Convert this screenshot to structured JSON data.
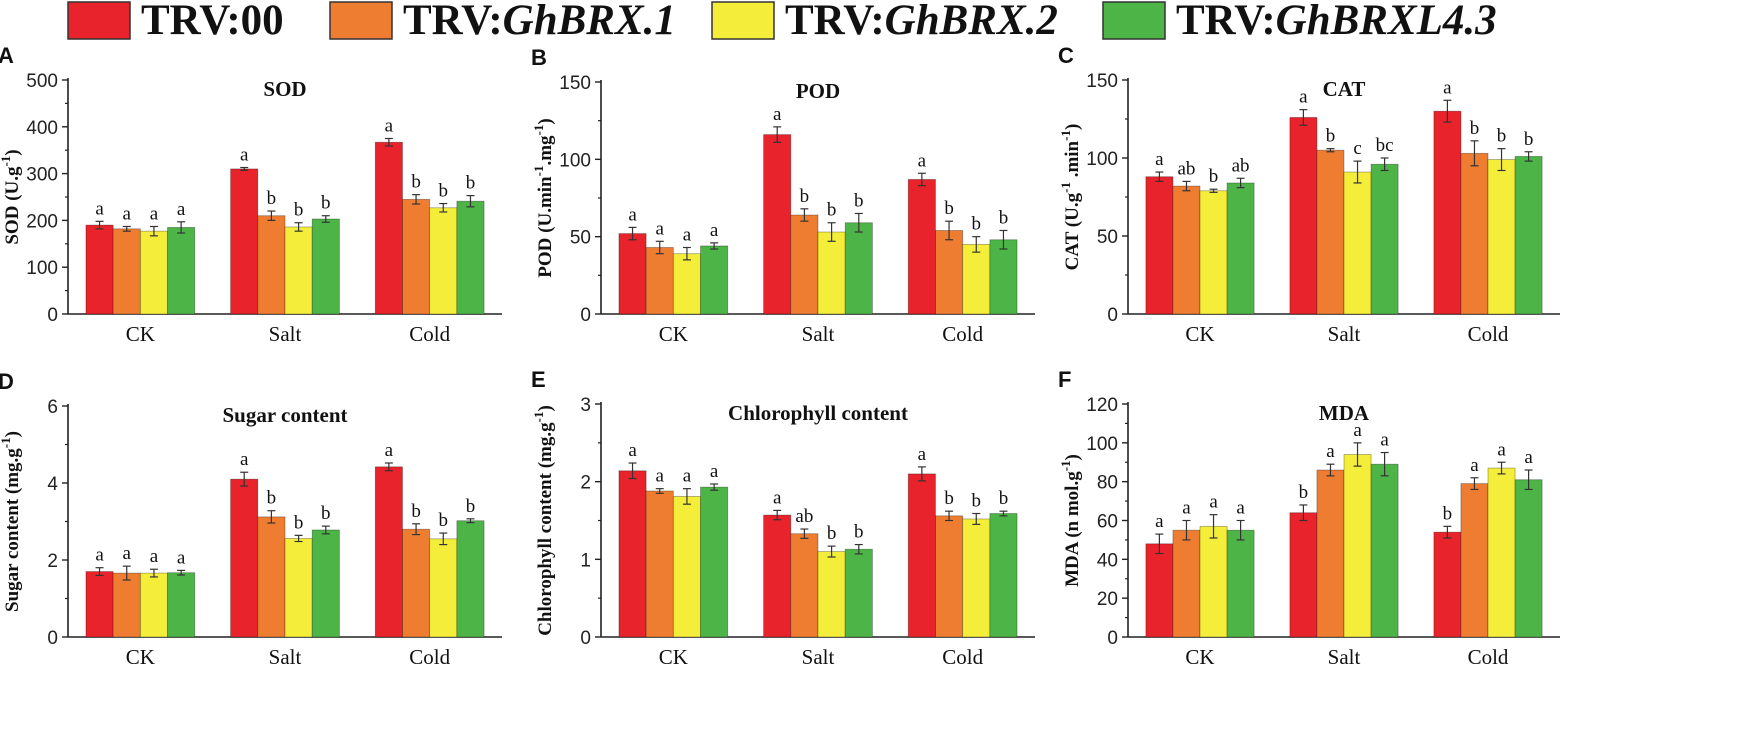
{
  "legend": [
    {
      "prefix": "TRV:",
      "italic": "00",
      "italic_flag": false,
      "color": "#e8232b"
    },
    {
      "prefix": "TRV:",
      "italic": "GhBRX.1",
      "italic_flag": true,
      "color": "#ef7d31"
    },
    {
      "prefix": "TRV:",
      "italic": "GhBRX.2",
      "italic_flag": true,
      "color": "#f4ee3b"
    },
    {
      "prefix": "TRV:",
      "italic": "GhBRXL4.3",
      "italic_flag": true,
      "color": "#4db447"
    }
  ],
  "chart_data": [
    {
      "panel": "A",
      "type": "bar",
      "title": "SOD",
      "ylabel": "SOD (U.g",
      "ylabel_sup": "-1",
      "ylabel_tail": ")",
      "ylim": [
        0,
        500
      ],
      "yticks": [
        0,
        100,
        200,
        300,
        400,
        500
      ],
      "categories": [
        "CK",
        "Salt",
        "Cold"
      ],
      "series": [
        {
          "name": "TRV:00",
          "values": [
            190,
            310,
            367
          ],
          "errors": [
            8,
            3,
            8
          ],
          "letters": [
            "a",
            "a",
            "a"
          ]
        },
        {
          "name": "TRV:GhBRX.1",
          "values": [
            182,
            210,
            245
          ],
          "errors": [
            5,
            10,
            10
          ],
          "letters": [
            "a",
            "b",
            "b"
          ]
        },
        {
          "name": "TRV:GhBRX.2",
          "values": [
            177,
            186,
            227
          ],
          "errors": [
            10,
            9,
            9
          ],
          "letters": [
            "a",
            "b",
            "b"
          ]
        },
        {
          "name": "TRV:GhBRXL4.3",
          "values": [
            185,
            203,
            241
          ],
          "errors": [
            12,
            7,
            12
          ],
          "letters": [
            "a",
            "b",
            "b"
          ]
        }
      ]
    },
    {
      "panel": "B",
      "type": "bar",
      "title": "POD",
      "ylabel": "POD (U.min",
      "ylabel_sup": "-1",
      "ylabel_mid": ".mg",
      "ylabel_sup2": "-1",
      "ylabel_tail": ")",
      "ylim": [
        0,
        150
      ],
      "yticks": [
        0,
        50,
        100,
        150
      ],
      "categories": [
        "CK",
        "Salt",
        "Cold"
      ],
      "series": [
        {
          "name": "TRV:00",
          "values": [
            52,
            116,
            87
          ],
          "errors": [
            4,
            5,
            4
          ],
          "letters": [
            "a",
            "a",
            "a"
          ]
        },
        {
          "name": "TRV:GhBRX.1",
          "values": [
            43,
            64,
            54
          ],
          "errors": [
            4,
            4,
            6
          ],
          "letters": [
            "a",
            "b",
            "b"
          ]
        },
        {
          "name": "TRV:GhBRX.2",
          "values": [
            39,
            53,
            45
          ],
          "errors": [
            4,
            6,
            5
          ],
          "letters": [
            "a",
            "b",
            "b"
          ]
        },
        {
          "name": "TRV:GhBRXL4.3",
          "values": [
            44,
            59,
            48
          ],
          "errors": [
            2,
            6,
            6
          ],
          "letters": [
            "a",
            "b",
            "b"
          ]
        }
      ]
    },
    {
      "panel": "C",
      "type": "bar",
      "title": "CAT",
      "ylabel": "CAT (U.g",
      "ylabel_sup": "-1",
      "ylabel_mid": " .min",
      "ylabel_sup2": "-1",
      "ylabel_tail": ")",
      "ylim": [
        0,
        150
      ],
      "yticks": [
        0,
        50,
        100,
        150
      ],
      "categories": [
        "CK",
        "Salt",
        "Cold"
      ],
      "series": [
        {
          "name": "TRV:00",
          "values": [
            88,
            126,
            130
          ],
          "errors": [
            3,
            5,
            7
          ],
          "letters": [
            "a",
            "a",
            "a"
          ]
        },
        {
          "name": "TRV:GhBRX.1",
          "values": [
            82,
            105,
            103
          ],
          "errors": [
            3,
            1,
            8
          ],
          "letters": [
            "ab",
            "b",
            "b"
          ]
        },
        {
          "name": "TRV:GhBRX.2",
          "values": [
            79,
            91,
            99
          ],
          "errors": [
            1,
            7,
            7
          ],
          "letters": [
            "b",
            "c",
            "b"
          ]
        },
        {
          "name": "TRV:GhBRXL4.3",
          "values": [
            84,
            96,
            101
          ],
          "errors": [
            3,
            4,
            3
          ],
          "letters": [
            "ab",
            "bc",
            "b"
          ]
        }
      ]
    },
    {
      "panel": "D",
      "type": "bar",
      "title": "Sugar content",
      "ylabel": "Sugar content (mg.g",
      "ylabel_sup": "-1",
      "ylabel_tail": ")",
      "ylim": [
        0,
        6
      ],
      "yticks": [
        0,
        2,
        4,
        6
      ],
      "categories": [
        "CK",
        "Salt",
        "Cold"
      ],
      "series": [
        {
          "name": "TRV:00",
          "values": [
            1.7,
            4.1,
            4.42
          ],
          "errors": [
            0.1,
            0.18,
            0.1
          ],
          "letters": [
            "a",
            "a",
            "a"
          ]
        },
        {
          "name": "TRV:GhBRX.1",
          "values": [
            1.66,
            3.12,
            2.8
          ],
          "errors": [
            0.18,
            0.16,
            0.14
          ],
          "letters": [
            "a",
            "b",
            "b"
          ]
        },
        {
          "name": "TRV:GhBRX.2",
          "values": [
            1.66,
            2.56,
            2.55
          ],
          "errors": [
            0.1,
            0.08,
            0.15
          ],
          "letters": [
            "a",
            "b",
            "b"
          ]
        },
        {
          "name": "TRV:GhBRXL4.3",
          "values": [
            1.67,
            2.78,
            3.02
          ],
          "errors": [
            0.06,
            0.1,
            0.05
          ],
          "letters": [
            "a",
            "b",
            "b"
          ]
        }
      ]
    },
    {
      "panel": "E",
      "type": "bar",
      "title": "Chlorophyll content",
      "ylabel": "Chlorophyll content (mg.g",
      "ylabel_sup": "-1",
      "ylabel_tail": ")",
      "ylim": [
        0,
        3
      ],
      "yticks": [
        0,
        1,
        2,
        3
      ],
      "categories": [
        "CK",
        "Salt",
        "Cold"
      ],
      "series": [
        {
          "name": "TRV:00",
          "values": [
            2.14,
            1.57,
            2.1
          ],
          "errors": [
            0.1,
            0.06,
            0.09
          ],
          "letters": [
            "a",
            "a",
            "a"
          ]
        },
        {
          "name": "TRV:GhBRX.1",
          "values": [
            1.88,
            1.33,
            1.56
          ],
          "errors": [
            0.03,
            0.06,
            0.06
          ],
          "letters": [
            "a",
            "ab",
            "b"
          ]
        },
        {
          "name": "TRV:GhBRX.2",
          "values": [
            1.81,
            1.1,
            1.52
          ],
          "errors": [
            0.1,
            0.07,
            0.07
          ],
          "letters": [
            "a",
            "b",
            "b"
          ]
        },
        {
          "name": "TRV:GhBRXL4.3",
          "values": [
            1.93,
            1.13,
            1.59
          ],
          "errors": [
            0.04,
            0.06,
            0.03
          ],
          "letters": [
            "a",
            "b",
            "b"
          ]
        }
      ]
    },
    {
      "panel": "F",
      "type": "bar",
      "title": "MDA",
      "ylabel": "MDA (n mol.g",
      "ylabel_sup": "-1",
      "ylabel_tail": ")",
      "ylim": [
        0,
        120
      ],
      "yticks": [
        0,
        20,
        40,
        60,
        80,
        100,
        120
      ],
      "categories": [
        "CK",
        "Salt",
        "Cold"
      ],
      "series": [
        {
          "name": "TRV:00",
          "values": [
            48,
            64,
            54
          ],
          "errors": [
            5,
            4,
            3
          ],
          "letters": [
            "a",
            "b",
            "b"
          ]
        },
        {
          "name": "TRV:GhBRX.1",
          "values": [
            55,
            86,
            79
          ],
          "errors": [
            5,
            3,
            3
          ],
          "letters": [
            "a",
            "a",
            "a"
          ]
        },
        {
          "name": "TRV:GhBRX.2",
          "values": [
            57,
            94,
            87
          ],
          "errors": [
            6,
            6,
            3
          ],
          "letters": [
            "a",
            "a",
            "a"
          ]
        },
        {
          "name": "TRV:GhBRXL4.3",
          "values": [
            55,
            89,
            81
          ],
          "errors": [
            5,
            6,
            5
          ],
          "letters": [
            "a",
            "a",
            "a"
          ]
        }
      ]
    }
  ]
}
